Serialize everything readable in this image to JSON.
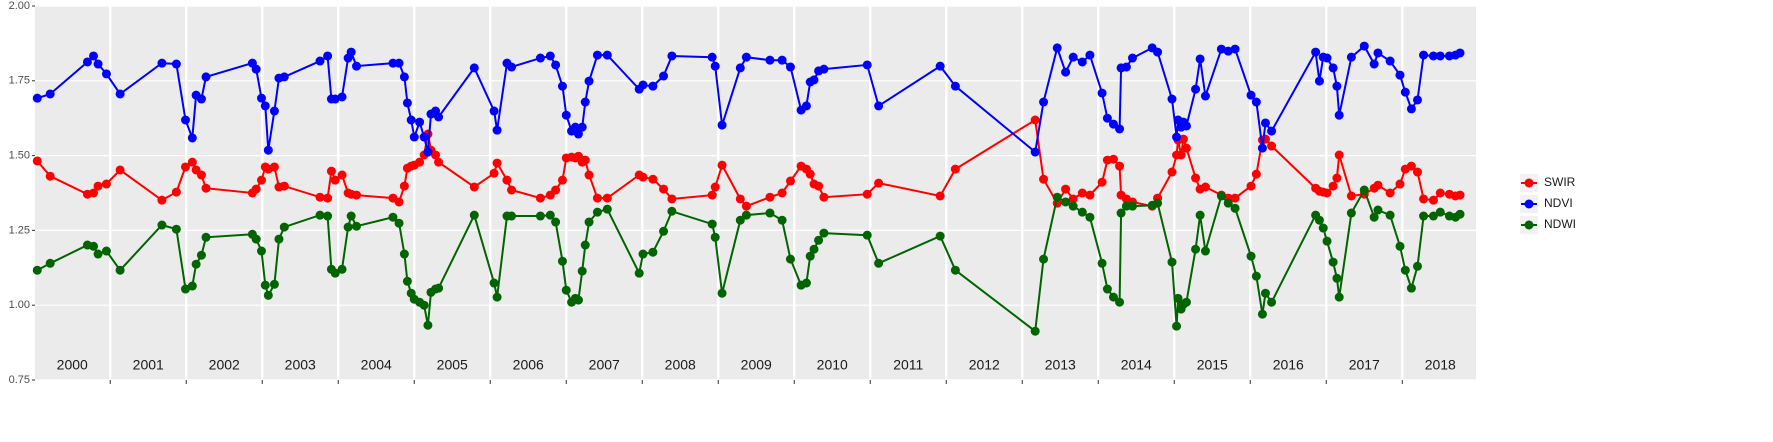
{
  "chart_data": {
    "type": "line",
    "x": [
      2000.04,
      2000.21,
      2000.7,
      2000.78,
      2000.84,
      2000.95,
      2001.13,
      2001.68,
      2001.87,
      2001.99,
      2002.08,
      2002.13,
      2002.2,
      2002.26,
      2002.87,
      2002.92,
      2002.99,
      2003.04,
      2003.08,
      2003.16,
      2003.22,
      2003.29,
      2003.76,
      2003.86,
      2003.91,
      2003.96,
      2004.05,
      2004.13,
      2004.17,
      2004.24,
      2004.72,
      2004.8,
      2004.87,
      2004.91,
      2004.96,
      2005.0,
      2005.07,
      2005.13,
      2005.18,
      2005.22,
      2005.28,
      2005.32,
      2005.79,
      2006.05,
      2006.09,
      2006.22,
      2006.28,
      2006.66,
      2006.79,
      2006.86,
      2006.95,
      2007.0,
      2007.07,
      2007.12,
      2007.16,
      2007.21,
      2007.25,
      2007.3,
      2007.41,
      2007.54,
      2007.96,
      2008.01,
      2008.14,
      2008.28,
      2008.39,
      2008.92,
      2008.96,
      2009.05,
      2009.29,
      2009.37,
      2009.68,
      2009.84,
      2009.95,
      2010.09,
      2010.16,
      2010.21,
      2010.26,
      2010.32,
      2010.39,
      2010.96,
      2011.11,
      2011.92,
      2012.12,
      2013.17,
      2013.28,
      2013.46,
      2013.57,
      2013.67,
      2013.79,
      2013.89,
      2014.05,
      2014.12,
      2014.2,
      2014.28,
      2014.3,
      2014.37,
      2014.45,
      2014.71,
      2014.78,
      2014.97,
      2015.03,
      2015.05,
      2015.09,
      2015.12,
      2015.16,
      2015.28,
      2015.34,
      2015.41,
      2015.62,
      2015.71,
      2015.8,
      2016.01,
      2016.08,
      2016.16,
      2016.2,
      2016.28,
      2016.86,
      2016.91,
      2016.96,
      2017.01,
      2017.09,
      2017.14,
      2017.17,
      2017.33,
      2017.5,
      2017.63,
      2017.68,
      2017.84,
      2017.97,
      2018.04,
      2018.12,
      2018.2,
      2018.28,
      2018.41,
      2018.5,
      2018.62,
      2018.7,
      2018.76
    ],
    "series": [
      {
        "name": "SWIR",
        "color": "#ff0000",
        "values": [
          1.482,
          1.431,
          1.371,
          1.375,
          1.398,
          1.405,
          1.452,
          1.351,
          1.378,
          1.462,
          1.478,
          1.452,
          1.435,
          1.391,
          1.375,
          1.388,
          1.418,
          1.462,
          1.455,
          1.462,
          1.395,
          1.398,
          1.361,
          1.358,
          1.448,
          1.418,
          1.435,
          1.375,
          1.371,
          1.368,
          1.358,
          1.345,
          1.398,
          1.458,
          1.465,
          1.468,
          1.478,
          1.502,
          1.572,
          1.518,
          1.502,
          1.478,
          1.395,
          1.441,
          1.475,
          1.418,
          1.385,
          1.358,
          1.368,
          1.385,
          1.418,
          1.492,
          1.495,
          1.492,
          1.498,
          1.478,
          1.485,
          1.435,
          1.358,
          1.358,
          1.435,
          1.428,
          1.421,
          1.388,
          1.355,
          1.368,
          1.395,
          1.468,
          1.355,
          1.331,
          1.361,
          1.375,
          1.415,
          1.465,
          1.455,
          1.438,
          1.405,
          1.398,
          1.361,
          1.371,
          1.408,
          1.365,
          1.455,
          1.619,
          1.421,
          1.341,
          1.388,
          1.355,
          1.375,
          1.368,
          1.411,
          1.485,
          1.488,
          1.465,
          1.368,
          1.355,
          1.345,
          1.331,
          1.358,
          1.445,
          1.502,
          1.552,
          1.502,
          1.555,
          1.525,
          1.425,
          1.388,
          1.395,
          1.368,
          1.358,
          1.358,
          1.398,
          1.438,
          1.552,
          1.555,
          1.532,
          1.391,
          1.381,
          1.378,
          1.375,
          1.398,
          1.425,
          1.502,
          1.365,
          1.371,
          1.391,
          1.401,
          1.375,
          1.405,
          1.455,
          1.465,
          1.445,
          1.355,
          1.351,
          1.375,
          1.371,
          1.365,
          1.368
        ]
      },
      {
        "name": "NDVI",
        "color": "#0000ff",
        "values": [
          1.692,
          1.706,
          1.813,
          1.833,
          1.806,
          1.773,
          1.706,
          1.809,
          1.806,
          1.619,
          1.559,
          1.702,
          1.689,
          1.763,
          1.809,
          1.789,
          1.692,
          1.666,
          1.518,
          1.649,
          1.759,
          1.763,
          1.816,
          1.833,
          1.689,
          1.689,
          1.696,
          1.826,
          1.846,
          1.799,
          1.809,
          1.809,
          1.763,
          1.676,
          1.619,
          1.562,
          1.612,
          1.562,
          1.512,
          1.639,
          1.649,
          1.629,
          1.793,
          1.649,
          1.585,
          1.809,
          1.796,
          1.826,
          1.833,
          1.803,
          1.732,
          1.635,
          1.582,
          1.595,
          1.572,
          1.595,
          1.679,
          1.749,
          1.836,
          1.836,
          1.722,
          1.736,
          1.732,
          1.766,
          1.833,
          1.829,
          1.799,
          1.602,
          1.793,
          1.829,
          1.819,
          1.819,
          1.796,
          1.652,
          1.666,
          1.746,
          1.753,
          1.783,
          1.789,
          1.803,
          1.666,
          1.799,
          1.732,
          1.512,
          1.679,
          1.86,
          1.779,
          1.829,
          1.813,
          1.836,
          1.709,
          1.625,
          1.605,
          1.589,
          1.793,
          1.796,
          1.826,
          1.86,
          1.846,
          1.689,
          1.562,
          1.619,
          1.595,
          1.612,
          1.599,
          1.722,
          1.823,
          1.699,
          1.856,
          1.849,
          1.856,
          1.702,
          1.679,
          1.525,
          1.609,
          1.582,
          1.846,
          1.749,
          1.829,
          1.826,
          1.793,
          1.732,
          1.635,
          1.829,
          1.866,
          1.806,
          1.843,
          1.816,
          1.769,
          1.712,
          1.656,
          1.686,
          1.836,
          1.833,
          1.833,
          1.833,
          1.836,
          1.843
        ]
      },
      {
        "name": "NDWI",
        "color": "#006400",
        "values": [
          1.117,
          1.14,
          1.201,
          1.197,
          1.171,
          1.181,
          1.117,
          1.268,
          1.254,
          1.054,
          1.064,
          1.137,
          1.167,
          1.227,
          1.237,
          1.221,
          1.181,
          1.067,
          1.033,
          1.07,
          1.221,
          1.261,
          1.301,
          1.298,
          1.12,
          1.107,
          1.12,
          1.261,
          1.298,
          1.264,
          1.294,
          1.274,
          1.171,
          1.08,
          1.04,
          1.02,
          1.01,
          1.0,
          0.933,
          1.043,
          1.054,
          1.057,
          1.301,
          1.074,
          1.027,
          1.298,
          1.298,
          1.298,
          1.301,
          1.278,
          1.147,
          1.05,
          1.01,
          1.023,
          1.017,
          1.114,
          1.201,
          1.278,
          1.311,
          1.321,
          1.107,
          1.171,
          1.177,
          1.247,
          1.314,
          1.271,
          1.227,
          1.04,
          1.284,
          1.301,
          1.308,
          1.284,
          1.154,
          1.067,
          1.074,
          1.164,
          1.187,
          1.217,
          1.241,
          1.234,
          1.14,
          1.231,
          1.117,
          0.913,
          1.154,
          1.361,
          1.345,
          1.331,
          1.311,
          1.294,
          1.14,
          1.054,
          1.027,
          1.01,
          1.308,
          1.331,
          1.331,
          1.334,
          1.341,
          1.144,
          0.93,
          1.023,
          0.987,
          1.003,
          1.01,
          1.187,
          1.301,
          1.181,
          1.365,
          1.341,
          1.324,
          1.164,
          1.097,
          0.97,
          1.04,
          1.01,
          1.301,
          1.284,
          1.258,
          1.214,
          1.144,
          1.09,
          1.027,
          1.308,
          1.385,
          1.294,
          1.318,
          1.301,
          1.197,
          1.117,
          1.057,
          1.13,
          1.298,
          1.298,
          1.311,
          1.298,
          1.294,
          1.304
        ]
      }
    ],
    "years": [
      2000,
      2001,
      2002,
      2003,
      2004,
      2005,
      2006,
      2007,
      2008,
      2009,
      2010,
      2011,
      2012,
      2013,
      2014,
      2015,
      2016,
      2017,
      2018
    ],
    "xlim": [
      2000.01,
      2018.97
    ],
    "ylim": [
      0.75,
      2.0
    ],
    "yticks": [
      0.75,
      {
        "value": 1,
        "label": "1.00"
      },
      1.25,
      {
        "value": 1.5,
        "label": "1.50"
      },
      1.75,
      {
        "value": 2,
        "label": "2.00"
      }
    ],
    "grid": true,
    "legend": "right"
  }
}
